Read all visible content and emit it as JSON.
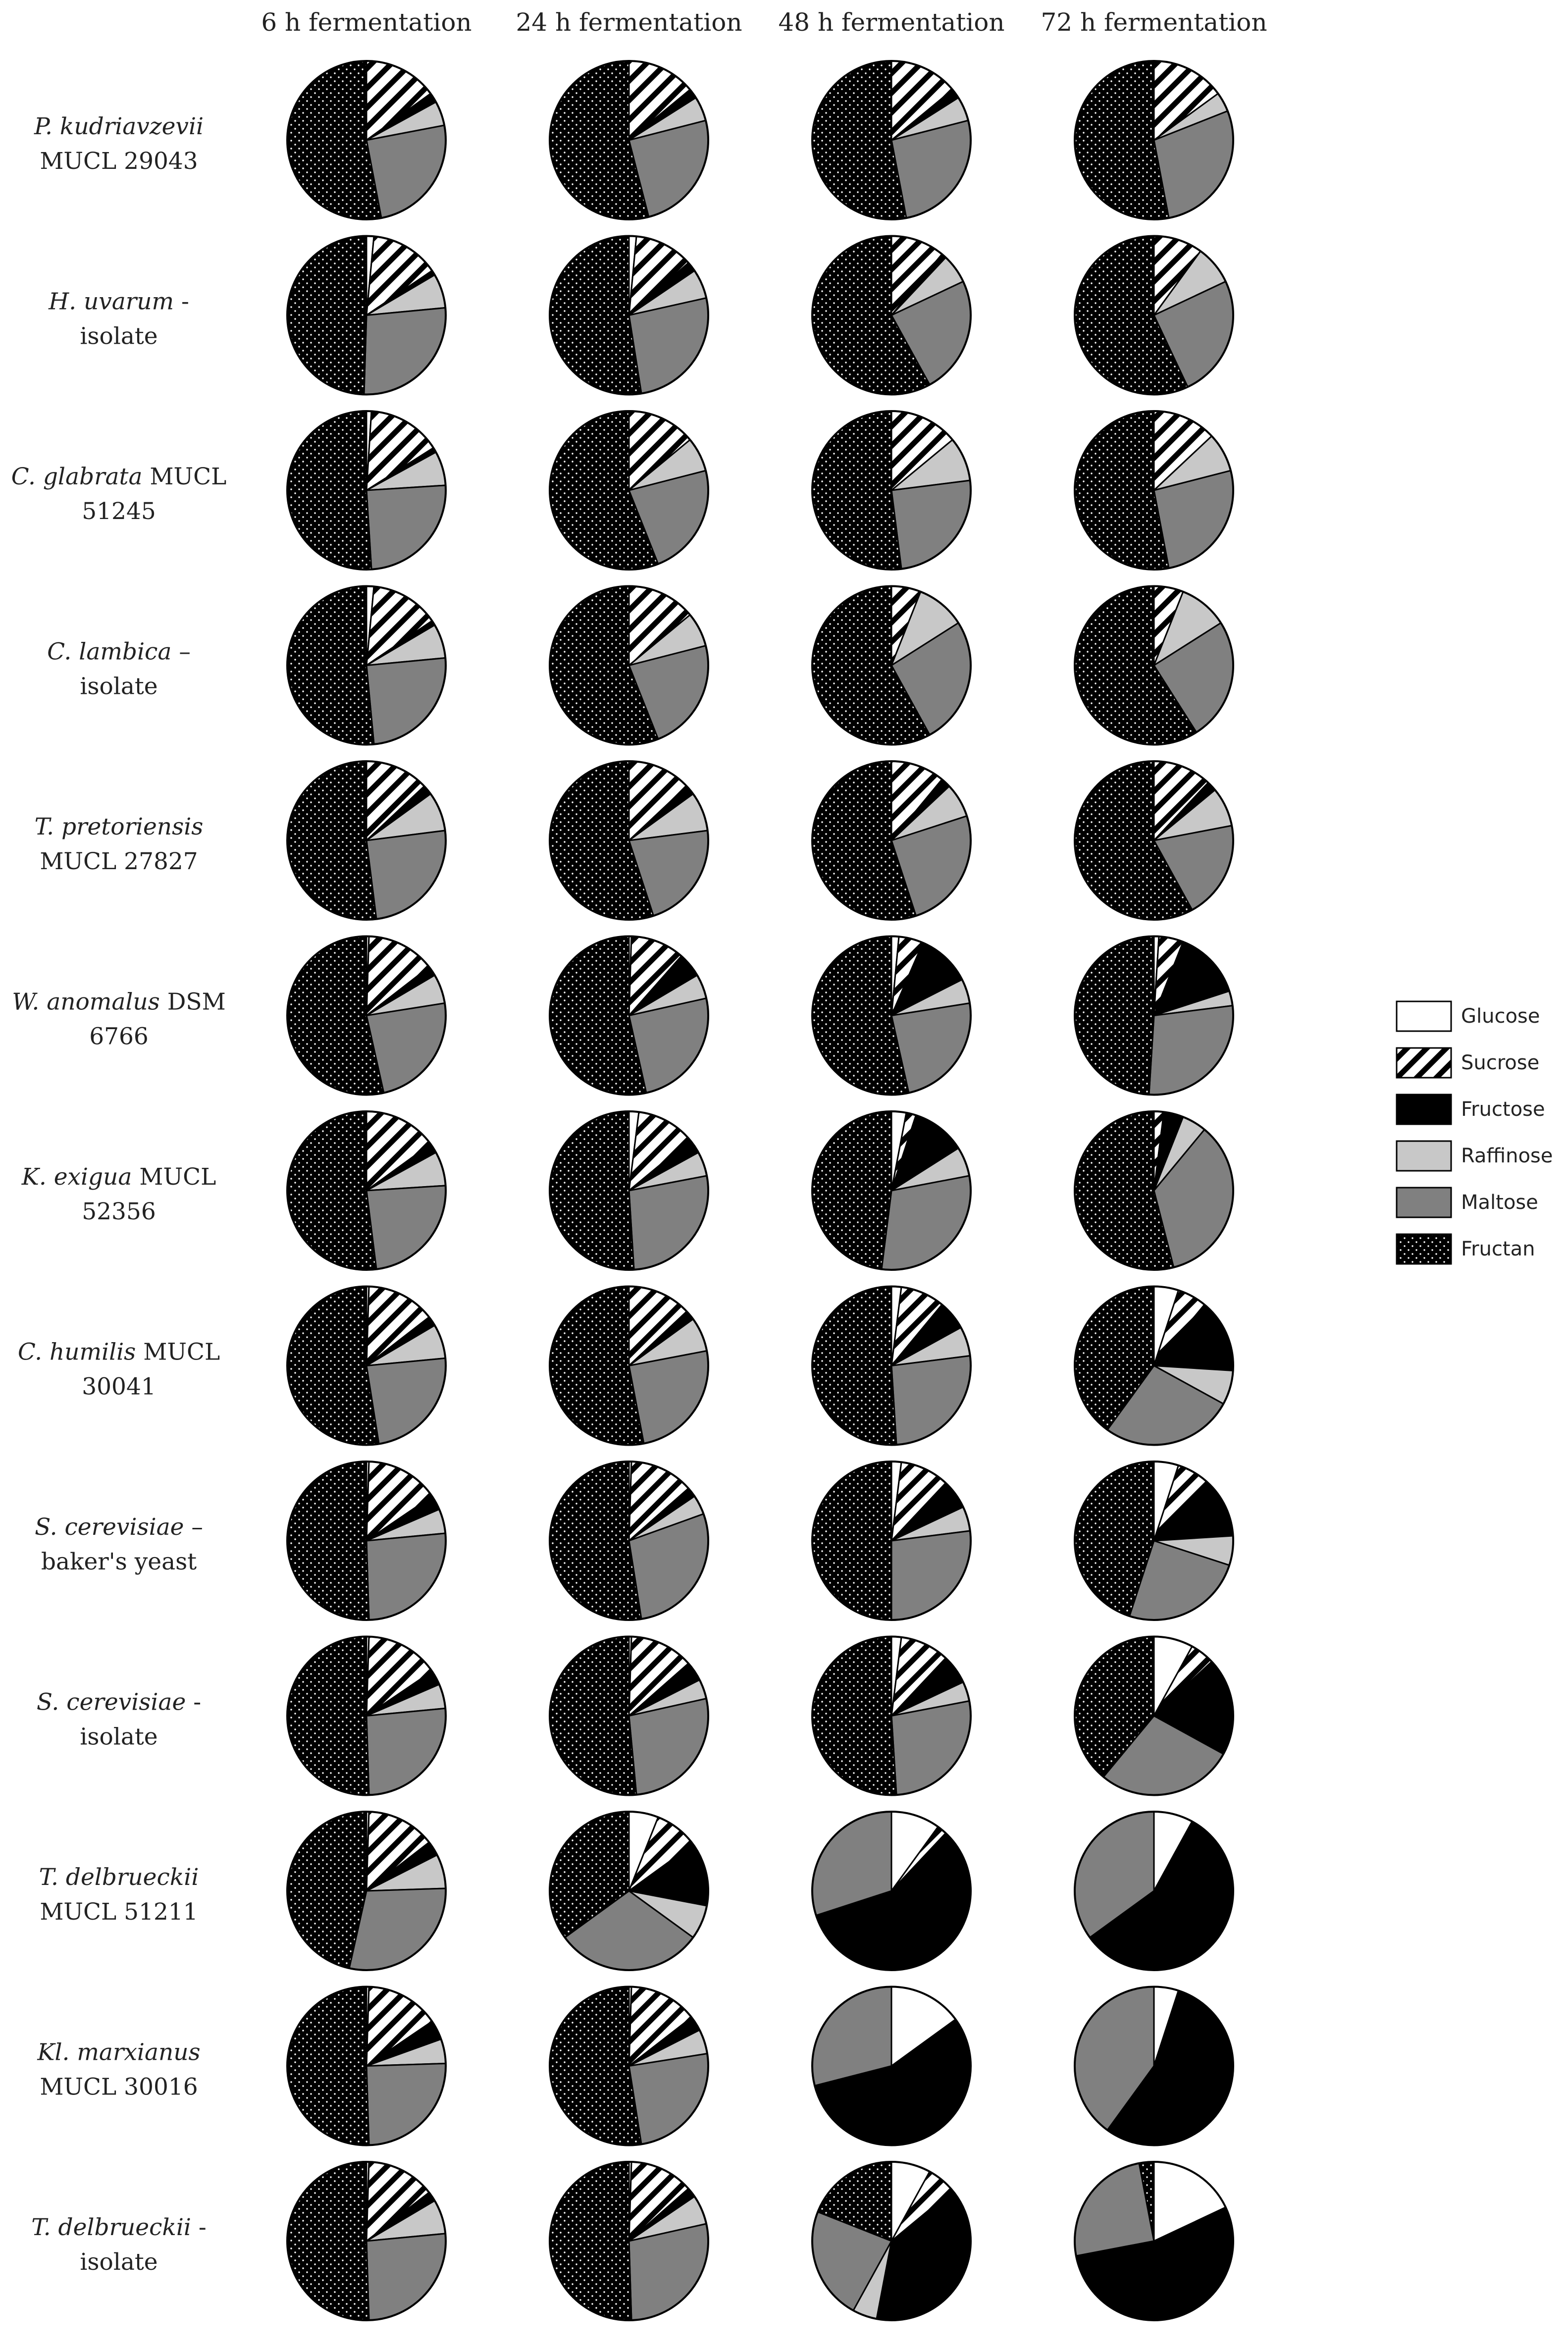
{
  "chart_data": {
    "type": "pie",
    "title": "",
    "columns": [
      "6 h fermentation",
      "24 h fermentation",
      "48 h fermentation",
      "72 h fermentation"
    ],
    "categories": [
      "Glucose",
      "Sucrose",
      "Fructose",
      "Raffinose",
      "Maltose",
      "Fructan"
    ],
    "category_fills": {
      "Glucose": "#ffffff",
      "Sucrose": "hatch",
      "Fructose": "#000000",
      "Raffinose": "#c8c8c8",
      "Maltose": "#808080",
      "Fructan": "dots"
    },
    "legend_position": "right",
    "rows": [
      {
        "label_parts": [
          [
            "P. kudriavzevii",
            true
          ],
          [
            "MUCL 29043",
            false
          ]
        ],
        "values": [
          [
            0,
            15,
            2,
            5,
            25,
            53
          ],
          [
            0,
            14,
            2,
            5,
            25,
            54
          ],
          [
            0,
            14,
            2,
            5,
            26,
            53
          ],
          [
            0,
            15,
            0,
            4,
            28,
            53
          ]
        ]
      },
      {
        "label_parts": [
          [
            "H. uvarum",
            true
          ],
          [
            " -",
            false
          ],
          [
            "isolate",
            false
          ]
        ],
        "values": [
          [
            1.5,
            14,
            1,
            7,
            27,
            49.5
          ],
          [
            1.5,
            12,
            2,
            6,
            26,
            52.5
          ],
          [
            0,
            11,
            1,
            6,
            24,
            58
          ],
          [
            0,
            10,
            0,
            8,
            25,
            57
          ]
        ]
      },
      {
        "label_parts": [
          [
            "C. glabrata",
            true
          ],
          [
            " MUCL",
            false
          ],
          [
            "51245",
            false
          ]
        ],
        "values": [
          [
            1,
            15,
            1,
            7,
            25,
            51
          ],
          [
            0,
            14,
            0,
            7,
            23,
            56
          ],
          [
            0,
            14,
            0,
            9,
            25,
            52
          ],
          [
            0,
            13,
            0,
            8,
            26,
            53
          ]
        ]
      },
      {
        "label_parts": [
          [
            "C. lambica",
            true
          ],
          [
            " –",
            false
          ],
          [
            "isolate",
            false
          ]
        ],
        "values": [
          [
            1.5,
            14,
            1,
            7,
            25,
            51.5
          ],
          [
            0,
            14,
            0,
            7,
            23,
            56
          ],
          [
            0,
            6,
            0,
            10,
            26,
            58
          ],
          [
            0,
            6,
            0,
            10,
            25,
            59
          ]
        ]
      },
      {
        "label_parts": [
          [
            "T. pretoriensis",
            true
          ],
          [
            "MUCL 27827",
            false
          ]
        ],
        "values": [
          [
            0,
            13,
            2,
            8,
            25,
            52
          ],
          [
            0,
            13,
            2,
            8,
            22,
            55
          ],
          [
            0,
            11,
            2,
            7,
            25,
            55
          ],
          [
            0,
            12,
            2,
            8,
            20,
            58
          ]
        ]
      },
      {
        "label_parts": [
          [
            "W. anomalus",
            true
          ],
          [
            " DSM",
            false
          ],
          [
            "6766",
            false
          ]
        ],
        "values": [
          [
            0.5,
            14,
            2,
            6,
            24,
            53.5
          ],
          [
            0.5,
            11,
            5,
            5,
            25,
            53.5
          ],
          [
            1.5,
            5,
            11,
            5,
            24,
            53.5
          ],
          [
            1,
            5,
            14,
            3,
            28,
            49
          ]
        ]
      },
      {
        "label_parts": [
          [
            "K. exigua",
            true
          ],
          [
            " MUCL",
            false
          ],
          [
            "52356",
            false
          ]
        ],
        "values": [
          [
            0,
            15,
            2,
            7,
            24,
            52
          ],
          [
            2,
            12,
            3,
            5,
            27,
            51
          ],
          [
            3,
            2,
            11,
            6,
            30,
            48
          ],
          [
            0,
            2,
            4,
            5,
            35,
            54
          ]
        ]
      },
      {
        "label_parts": [
          [
            "C. humilis",
            true
          ],
          [
            " MUCL",
            false
          ],
          [
            "30041",
            false
          ]
        ],
        "values": [
          [
            0.5,
            14,
            2,
            7,
            24,
            52.5
          ],
          [
            0,
            13,
            2,
            7,
            25,
            53
          ],
          [
            2,
            9,
            6,
            6,
            26,
            51
          ],
          [
            5,
            6,
            15,
            7,
            27,
            40
          ]
        ]
      },
      {
        "label_parts": [
          [
            "S. cerevisiae",
            true
          ],
          [
            " –",
            false
          ],
          [
            "baker's yeast",
            false
          ]
        ],
        "values": [
          [
            0.5,
            15,
            3,
            5,
            26,
            50.5
          ],
          [
            0.5,
            13,
            2,
            4,
            28,
            52.5
          ],
          [
            2,
            10,
            6,
            5,
            27,
            50
          ],
          [
            5,
            7,
            12,
            6,
            25,
            45
          ]
        ]
      },
      {
        "label_parts": [
          [
            "S. cerevisiae",
            true
          ],
          [
            " -",
            false
          ],
          [
            "isolate",
            false
          ]
        ],
        "values": [
          [
            0.5,
            15,
            3,
            5,
            26,
            50.5
          ],
          [
            0.5,
            13,
            4,
            4,
            27,
            51.5
          ],
          [
            2,
            10,
            6,
            4,
            27,
            51
          ],
          [
            8,
            5,
            20,
            0,
            28,
            39
          ]
        ]
      },
      {
        "label_parts": [
          [
            "T. delbrueckii",
            true
          ],
          [
            "MUCL 51211",
            false
          ]
        ],
        "values": [
          [
            0.5,
            14,
            3,
            7,
            29,
            46.5
          ],
          [
            6,
            9,
            13,
            7,
            30,
            35
          ],
          [
            10,
            2,
            58,
            0,
            30,
            0
          ],
          [
            8,
            0,
            57,
            0,
            35,
            0
          ]
        ]
      },
      {
        "label_parts": [
          [
            "Kl. marxianus",
            true
          ],
          [
            "MUCL 30016",
            false
          ]
        ],
        "values": [
          [
            0.5,
            15,
            4,
            5,
            25,
            50.5
          ],
          [
            0.5,
            14,
            3,
            5,
            25,
            52.5
          ],
          [
            15,
            0,
            56,
            0,
            29,
            0
          ],
          [
            5,
            0,
            55,
            0,
            40,
            0
          ]
        ]
      },
      {
        "label_parts": [
          [
            "T. delbrueckii",
            true
          ],
          [
            " -",
            false
          ],
          [
            "isolate",
            false
          ]
        ],
        "values": [
          [
            0.5,
            14,
            2,
            7,
            26,
            50.5
          ],
          [
            0.5,
            13,
            2,
            6,
            28,
            50.5
          ],
          [
            8,
            6,
            39,
            5,
            23,
            19
          ],
          [
            18,
            0,
            54,
            0,
            25,
            3
          ]
        ]
      }
    ]
  }
}
